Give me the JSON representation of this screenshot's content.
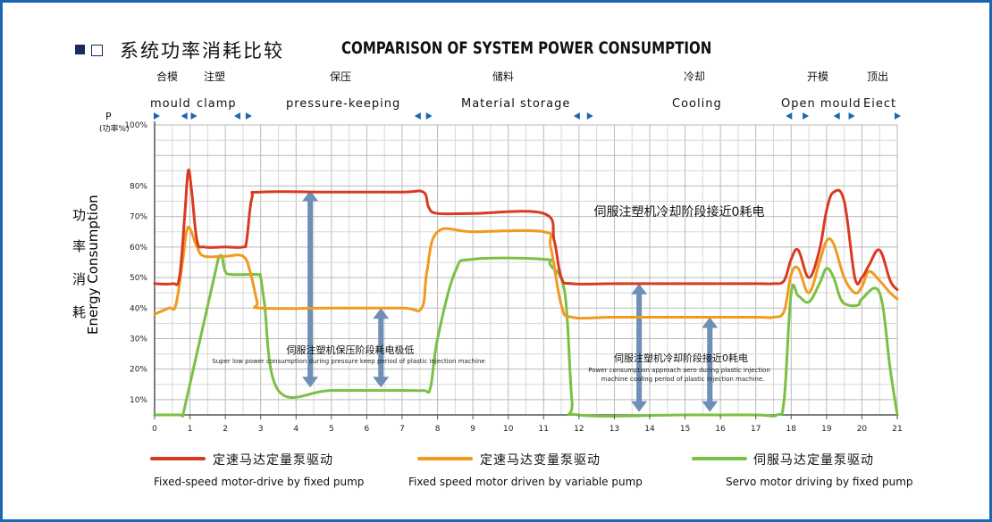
{
  "title": {
    "cn": "系统功率消耗比较",
    "en": "COMPARISON OF SYSTEM POWER CONSUMPTION"
  },
  "phases": {
    "cn": [
      "合模",
      "注塑",
      "保压",
      "储料",
      "冷却",
      "开模",
      "顶出"
    ],
    "en": [
      "mould",
      "clamp",
      "pressure-keeping",
      "Material storage",
      "Cooling",
      "Open mould",
      "Eiect"
    ]
  },
  "y_axis": {
    "label_cn": [
      "功",
      "率",
      "消",
      "耗"
    ],
    "label_en": "Energy Consumption",
    "symbol": "P",
    "unit": "(功率%)"
  },
  "annotations": {
    "cooling_top": "伺服注塑机冷却阶段接近0耗电",
    "hold_cn": "伺服注塑机保压阶段耗电极低",
    "hold_en": "Super low power consumption during pressure keep period of plastic injection machine",
    "cool_cn": "伺服注塑机冷却阶段接近0耗电",
    "cool_en1": "Power consumption approach aero during plastic injection",
    "cool_en2": "machine cooling period of plastic injection machine."
  },
  "legend": [
    {
      "cn": "定速马达定量泵驱动",
      "en": "Fixed-speed motor-drive by fixed pump",
      "color": "#d93a20"
    },
    {
      "cn": "定速马达变量泵驱动",
      "en": "Fixed speed motor driven by variable pump",
      "color": "#f19a1e"
    },
    {
      "cn": "伺服马达定量泵驱动",
      "en": "Servo motor driving by fixed pump",
      "color": "#7bc043"
    }
  ],
  "chart_data": {
    "type": "line",
    "xlabel": "",
    "ylabel": "Energy Consumption",
    "xlim": [
      0,
      21
    ],
    "ylim": [
      5,
      100
    ],
    "x_ticks": [
      0,
      1,
      2,
      3,
      4,
      5,
      6,
      7,
      8,
      9,
      10,
      11,
      12,
      13,
      14,
      15,
      16,
      17,
      18,
      19,
      20,
      21
    ],
    "y_ticks": [
      10,
      20,
      30,
      40,
      50,
      60,
      70,
      80,
      100
    ],
    "y_tick_labels": [
      "10%",
      "20%",
      "30%",
      "40%",
      "50%",
      "60%",
      "70%",
      "80%",
      "100%"
    ],
    "series": [
      {
        "name": "定速马达定量泵驱动",
        "color": "#d93a20",
        "x": [
          0,
          0.5,
          0.7,
          0.85,
          0.95,
          1.05,
          1.2,
          1.4,
          2,
          2.5,
          2.6,
          2.75,
          3,
          5,
          7,
          7.6,
          7.75,
          8,
          9,
          11,
          11.3,
          11.5,
          11.8,
          13,
          15,
          17,
          17.5,
          17.8,
          18,
          18.2,
          18.5,
          18.8,
          19,
          19.2,
          19.5,
          19.8,
          20,
          20.2,
          20.5,
          20.8,
          21
        ],
        "y": [
          48,
          48,
          50,
          70,
          85,
          78,
          62,
          60,
          60,
          60,
          62,
          76,
          78,
          78,
          78,
          78,
          73,
          71,
          71,
          71,
          62,
          50,
          48,
          48,
          48,
          48,
          48,
          49,
          56,
          59,
          50,
          59,
          72,
          78,
          75,
          50,
          50,
          54,
          59,
          49,
          46
        ]
      },
      {
        "name": "定速马达变量泵驱动",
        "color": "#f19a1e",
        "x": [
          0,
          0.4,
          0.6,
          0.8,
          0.9,
          1,
          1.2,
          1.4,
          2,
          2.5,
          2.7,
          2.9,
          3,
          5,
          7,
          7.55,
          7.7,
          8,
          9,
          11,
          11.2,
          11.5,
          11.8,
          13,
          15,
          17,
          17.5,
          17.8,
          18,
          18.2,
          18.5,
          18.8,
          19,
          19.2,
          19.5,
          19.8,
          20,
          20.2,
          20.5,
          20.8,
          21
        ],
        "y": [
          38,
          40,
          41,
          56,
          65,
          66,
          60,
          57,
          57,
          57,
          52,
          42,
          40,
          40,
          40,
          40,
          52,
          65,
          65,
          65,
          60,
          41,
          37,
          37,
          37,
          37,
          37,
          39,
          51,
          53,
          45,
          55,
          62,
          61,
          50,
          45,
          47,
          52,
          49,
          45,
          43
        ]
      },
      {
        "name": "伺服马达定量泵驱动",
        "color": "#7bc043",
        "x": [
          0,
          0.7,
          0.8,
          0.9,
          1.7,
          1.8,
          1.9,
          2,
          2.2,
          2.9,
          3,
          3.1,
          3.5,
          5,
          7,
          7.6,
          7.8,
          8,
          8.5,
          9,
          11,
          11.2,
          11.6,
          11.8,
          12,
          15,
          17,
          17.6,
          17.8,
          18,
          18.2,
          18.5,
          18.8,
          19,
          19.2,
          19.4,
          19.6,
          19.9,
          20,
          20.5,
          20.8,
          21
        ],
        "y": [
          5,
          5,
          5,
          10,
          51,
          56,
          57,
          52,
          51,
          51,
          50,
          42,
          13,
          13,
          13,
          13,
          14,
          30,
          52,
          56,
          56,
          54,
          45,
          10,
          5,
          5,
          5,
          5,
          10,
          45,
          44,
          42,
          48,
          53,
          50,
          43,
          41,
          41,
          43,
          45,
          20,
          5
        ]
      }
    ]
  }
}
